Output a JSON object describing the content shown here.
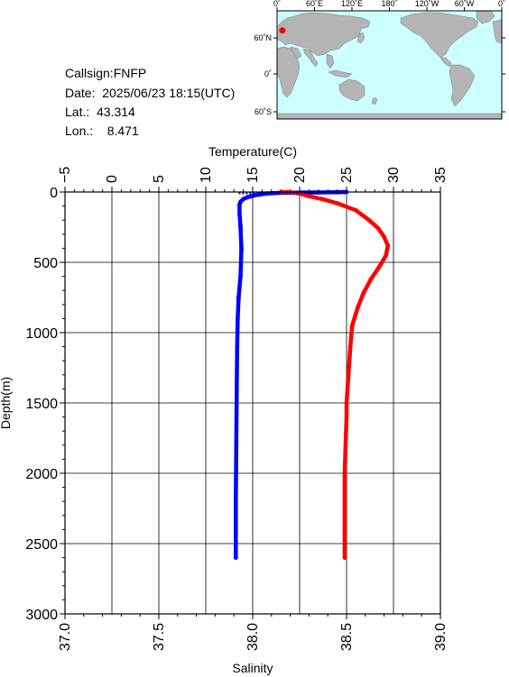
{
  "station": {
    "callsign_line": "Callsign:FNFP",
    "date_line": "Date:  2025/06/23 18:15(UTC)",
    "lat_line": "Lat.:  43.314",
    "lon_line": "Lon.:    8.471"
  },
  "map": {
    "lon_labels": [
      "0˚",
      "60˚E",
      "120˚E",
      "180˚",
      "120˚W",
      "60˚W",
      "0˚"
    ],
    "lat_labels": [
      "60˚N",
      "0˚",
      "60˚S"
    ],
    "ocean_color": "#ccffff",
    "land_color": "#b4b4b4",
    "marker_color": "#ff0000",
    "marker_lat": 43.314,
    "marker_lon": 8.471
  },
  "chart_data": {
    "type": "line",
    "title": "",
    "ylabel": "Depth(m)",
    "ylim": [
      3000,
      0
    ],
    "y_ticks": [
      "0",
      "500",
      "1000",
      "1500",
      "2000",
      "2500",
      "3000"
    ],
    "grid": true,
    "top_axis": {
      "label": "Temperature(C)",
      "range": [
        -5,
        35
      ],
      "ticks": [
        "−5",
        "0",
        "5",
        "10",
        "15",
        "20",
        "25",
        "30",
        "35"
      ]
    },
    "bottom_axis": {
      "label": "Salinity",
      "range": [
        37.0,
        39.0
      ],
      "ticks": [
        "37.0",
        "37.5",
        "38.0",
        "38.5",
        "39.0"
      ]
    },
    "series": [
      {
        "axis": "top",
        "color": "#0000ff",
        "points": [
          [
            25,
            0
          ],
          [
            24,
            2
          ],
          [
            22,
            3
          ],
          [
            20,
            4
          ],
          [
            18,
            6
          ],
          [
            16.5,
            10
          ],
          [
            15.5,
            20
          ],
          [
            14.5,
            35
          ],
          [
            14,
            50
          ],
          [
            13.7,
            70
          ],
          [
            13.6,
            90
          ],
          [
            13.6,
            150
          ],
          [
            13.7,
            250
          ],
          [
            13.8,
            400
          ],
          [
            13.7,
            600
          ],
          [
            13.5,
            750
          ],
          [
            13.4,
            900
          ],
          [
            13.35,
            1100
          ],
          [
            13.3,
            1400
          ],
          [
            13.25,
            1800
          ],
          [
            13.2,
            2200
          ],
          [
            13.2,
            2500
          ],
          [
            13.2,
            2600
          ]
        ]
      },
      {
        "axis": "bottom",
        "color": "#ff0000",
        "points": [
          [
            38.15,
            0
          ],
          [
            38.2,
            2
          ],
          [
            38.25,
            10
          ],
          [
            38.3,
            30
          ],
          [
            38.37,
            50
          ],
          [
            38.45,
            80
          ],
          [
            38.55,
            130
          ],
          [
            38.62,
            200
          ],
          [
            38.67,
            260
          ],
          [
            38.7,
            320
          ],
          [
            38.72,
            380
          ],
          [
            38.71,
            450
          ],
          [
            38.68,
            520
          ],
          [
            38.63,
            620
          ],
          [
            38.59,
            720
          ],
          [
            38.56,
            820
          ],
          [
            38.53,
            950
          ],
          [
            38.52,
            1100
          ],
          [
            38.51,
            1300
          ],
          [
            38.5,
            1500
          ],
          [
            38.5,
            1600
          ],
          [
            38.49,
            2000
          ],
          [
            38.49,
            2400
          ],
          [
            38.49,
            2600
          ]
        ]
      }
    ]
  }
}
